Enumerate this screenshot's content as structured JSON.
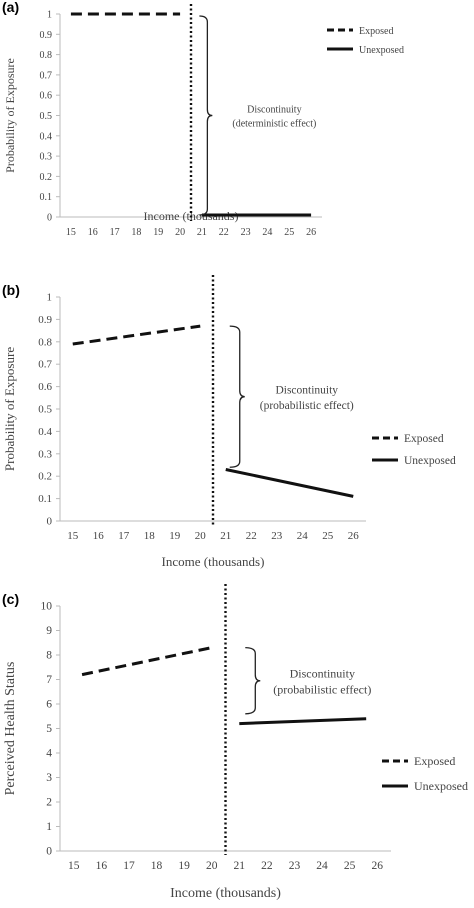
{
  "chart_data": [
    {
      "panel_label": "(a)",
      "type": "line",
      "xlabel": "Income (thousands)",
      "ylabel": "Probability of Exposure",
      "xticks": [
        "15",
        "16",
        "17",
        "18",
        "19",
        "20",
        "21",
        "22",
        "23",
        "24",
        "25",
        "26"
      ],
      "yticks": [
        "0",
        "0.1",
        "0.2",
        "0.3",
        "0.4",
        "0.5",
        "0.6",
        "0.7",
        "0.8",
        "0.9",
        "1"
      ],
      "xlim": [
        14.5,
        26.5
      ],
      "ylim": [
        0,
        1
      ],
      "threshold_x": 20.5,
      "series": [
        {
          "name": "Exposed",
          "style": "dashed",
          "x": [
            15,
            20
          ],
          "y": [
            1,
            1
          ]
        },
        {
          "name": "Unexposed",
          "style": "solid",
          "x": [
            21,
            26
          ],
          "y": [
            0.01,
            0.01
          ]
        }
      ],
      "annotation": {
        "lines": [
          "Discontinuity",
          "(deterministic effect)"
        ],
        "x": 20.7,
        "y_low": 0.01,
        "y_high": 0.99
      },
      "legend_placement": "top-right",
      "grid": false
    },
    {
      "panel_label": "(b)",
      "type": "line",
      "xlabel": "Income (thousands)",
      "ylabel": "Probability of Exposure",
      "xticks": [
        "15",
        "16",
        "17",
        "18",
        "19",
        "20",
        "21",
        "22",
        "23",
        "24",
        "25",
        "26"
      ],
      "yticks": [
        "0",
        "0.1",
        "0.2",
        "0.3",
        "0.4",
        "0.5",
        "0.6",
        "0.7",
        "0.8",
        "0.9",
        "1"
      ],
      "xlim": [
        14.5,
        26.5
      ],
      "ylim": [
        0,
        1
      ],
      "threshold_x": 20.5,
      "series": [
        {
          "name": "Exposed",
          "style": "dashed",
          "x": [
            15,
            20
          ],
          "y": [
            0.79,
            0.87
          ]
        },
        {
          "name": "Unexposed",
          "style": "solid",
          "x": [
            21,
            26
          ],
          "y": [
            0.23,
            0.11
          ]
        }
      ],
      "annotation": {
        "lines": [
          "Discontinuity",
          "(probabilistic effect)"
        ],
        "x": 21.0,
        "y_low": 0.24,
        "y_high": 0.87
      },
      "legend_placement": "right",
      "grid": false
    },
    {
      "panel_label": "(c)",
      "type": "line",
      "xlabel": "Income (thousands)",
      "ylabel": "Perceived Health Status",
      "xticks": [
        "15",
        "16",
        "17",
        "18",
        "19",
        "20",
        "21",
        "22",
        "23",
        "24",
        "25",
        "26"
      ],
      "yticks": [
        "0",
        "1",
        "2",
        "3",
        "4",
        "5",
        "6",
        "7",
        "8",
        "9",
        "10"
      ],
      "xlim": [
        14.5,
        26.5
      ],
      "ylim": [
        0,
        10
      ],
      "threshold_x": 20.5,
      "series": [
        {
          "name": "Exposed",
          "style": "dashed",
          "x": [
            15.3,
            20
          ],
          "y": [
            7.2,
            8.3
          ]
        },
        {
          "name": "Unexposed",
          "style": "solid",
          "x": [
            21,
            25.6
          ],
          "y": [
            5.2,
            5.4
          ]
        }
      ],
      "annotation": {
        "lines": [
          "Discontinuity",
          "(probabilistic effect)"
        ],
        "x": 21.0,
        "y_low": 5.6,
        "y_high": 8.3
      },
      "legend_placement": "bottom-right",
      "grid": false
    }
  ]
}
